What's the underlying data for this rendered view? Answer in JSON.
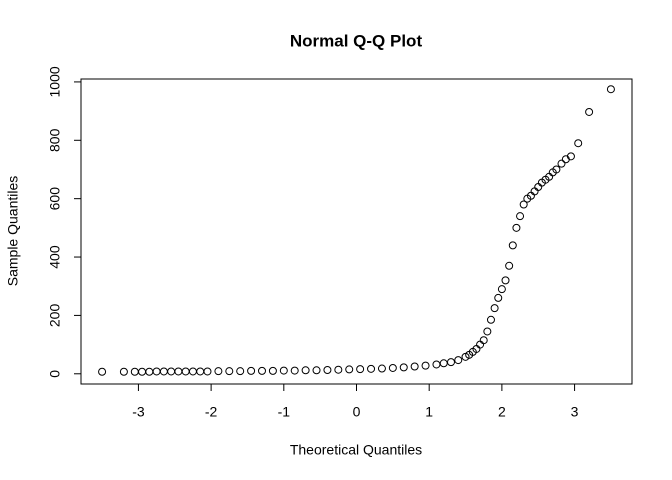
{
  "chart_data": {
    "type": "scatter",
    "title": "Normal Q-Q Plot",
    "x_label": "Theoretical Quantiles",
    "y_label": "Sample Quantiles",
    "x": [
      -3.5,
      -3.2,
      -3.05,
      -2.95,
      -2.85,
      -2.75,
      -2.65,
      -2.55,
      -2.45,
      -2.35,
      -2.25,
      -2.15,
      -2.05,
      -1.9,
      -1.75,
      -1.6,
      -1.45,
      -1.3,
      -1.15,
      -1.0,
      -0.85,
      -0.7,
      -0.55,
      -0.4,
      -0.25,
      -0.1,
      0.05,
      0.2,
      0.35,
      0.5,
      0.65,
      0.8,
      0.95,
      1.1,
      1.2,
      1.3,
      1.4,
      1.5,
      1.55,
      1.6,
      1.65,
      1.7,
      1.75,
      1.8,
      1.85,
      1.9,
      1.95,
      2.0,
      2.05,
      2.1,
      2.15,
      2.2,
      2.25,
      2.3,
      2.35,
      2.4,
      2.45,
      2.5,
      2.55,
      2.6,
      2.65,
      2.7,
      2.75,
      2.82,
      2.88,
      2.95,
      3.05,
      3.2,
      3.5
    ],
    "values": [
      7,
      7,
      7,
      7,
      7,
      8,
      8,
      8,
      8,
      8,
      8,
      8,
      8,
      9,
      9,
      9,
      10,
      10,
      10,
      11,
      11,
      12,
      12,
      13,
      14,
      15,
      16,
      17,
      18,
      20,
      22,
      25,
      28,
      32,
      36,
      40,
      47,
      58,
      65,
      75,
      85,
      100,
      115,
      145,
      185,
      225,
      260,
      290,
      320,
      370,
      440,
      500,
      540,
      580,
      600,
      610,
      625,
      640,
      655,
      665,
      675,
      690,
      700,
      720,
      735,
      745,
      790,
      897,
      975
    ],
    "color": "#000000",
    "xlim": [
      -3.79,
      3.79
    ],
    "xticks": [
      -3,
      -2,
      -1,
      0,
      1,
      2,
      3
    ],
    "ylim": [
      -35,
      1010
    ],
    "yticks": [
      0,
      200,
      400,
      600,
      800,
      1000
    ]
  }
}
